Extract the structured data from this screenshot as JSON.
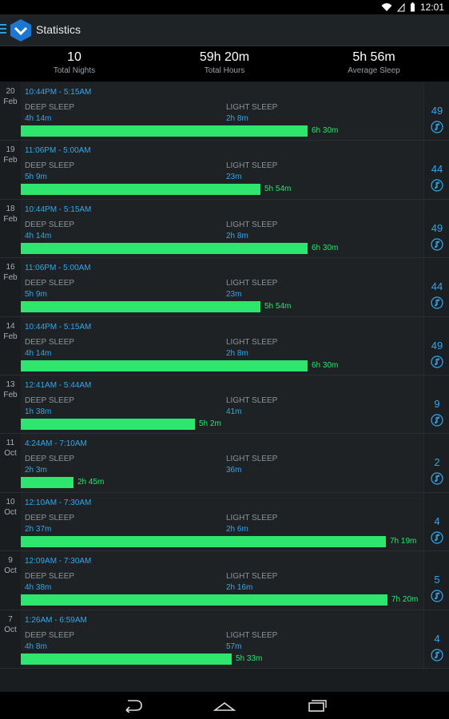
{
  "status_bar": {
    "time": "12:01"
  },
  "app_bar": {
    "title": "Statistics"
  },
  "summary": [
    {
      "value": "10",
      "label": "Total Nights"
    },
    {
      "value": "59h 20m",
      "label": "Total Hours"
    },
    {
      "value": "5h 56m",
      "label": "Average Sleep"
    }
  ],
  "labels": {
    "deep": "DEEP SLEEP",
    "light": "LIGHT SLEEP"
  },
  "nights": [
    {
      "day": "20",
      "month": "Feb",
      "range": "10:44PM - 5:15AM",
      "deep": "4h 14m",
      "light": "2h 8m",
      "total": "6h 30m",
      "fraction": 0.718,
      "score": "49"
    },
    {
      "day": "19",
      "month": "Feb",
      "range": "11:06PM - 5:00AM",
      "deep": "5h 9m",
      "light": "23m",
      "total": "5h 54m",
      "fraction": 0.6,
      "score": "44"
    },
    {
      "day": "18",
      "month": "Feb",
      "range": "10:44PM - 5:15AM",
      "deep": "4h 14m",
      "light": "2h 8m",
      "total": "6h 30m",
      "fraction": 0.718,
      "score": "49"
    },
    {
      "day": "16",
      "month": "Feb",
      "range": "11:06PM - 5:00AM",
      "deep": "5h 9m",
      "light": "23m",
      "total": "5h 54m",
      "fraction": 0.6,
      "score": "44"
    },
    {
      "day": "14",
      "month": "Feb",
      "range": "10:44PM - 5:15AM",
      "deep": "4h 14m",
      "light": "2h 8m",
      "total": "6h 30m",
      "fraction": 0.718,
      "score": "49"
    },
    {
      "day": "13",
      "month": "Feb",
      "range": "12:41AM - 5:44AM",
      "deep": "1h 38m",
      "light": "41m",
      "total": "5h 2m",
      "fraction": 0.436,
      "score": "9"
    },
    {
      "day": "11",
      "month": "Oct",
      "range": "4:24AM - 7:10AM",
      "deep": "2h 3m",
      "light": "36m",
      "total": "2h 45m",
      "fraction": 0.132,
      "score": "2"
    },
    {
      "day": "10",
      "month": "Oct",
      "range": "12:10AM - 7:30AM",
      "deep": "2h 37m",
      "light": "2h 6m",
      "total": "7h 19m",
      "fraction": 0.914,
      "score": "4"
    },
    {
      "day": "9",
      "month": "Oct",
      "range": "12:09AM - 7:30AM",
      "deep": "4h 38m",
      "light": "2h 16m",
      "total": "7h 20m",
      "fraction": 0.918,
      "score": "5"
    },
    {
      "day": "7",
      "month": "Oct",
      "range": "1:26AM - 6:59AM",
      "deep": "4h 8m",
      "light": "57m",
      "total": "5h 33m",
      "fraction": 0.528,
      "score": "4"
    }
  ]
}
